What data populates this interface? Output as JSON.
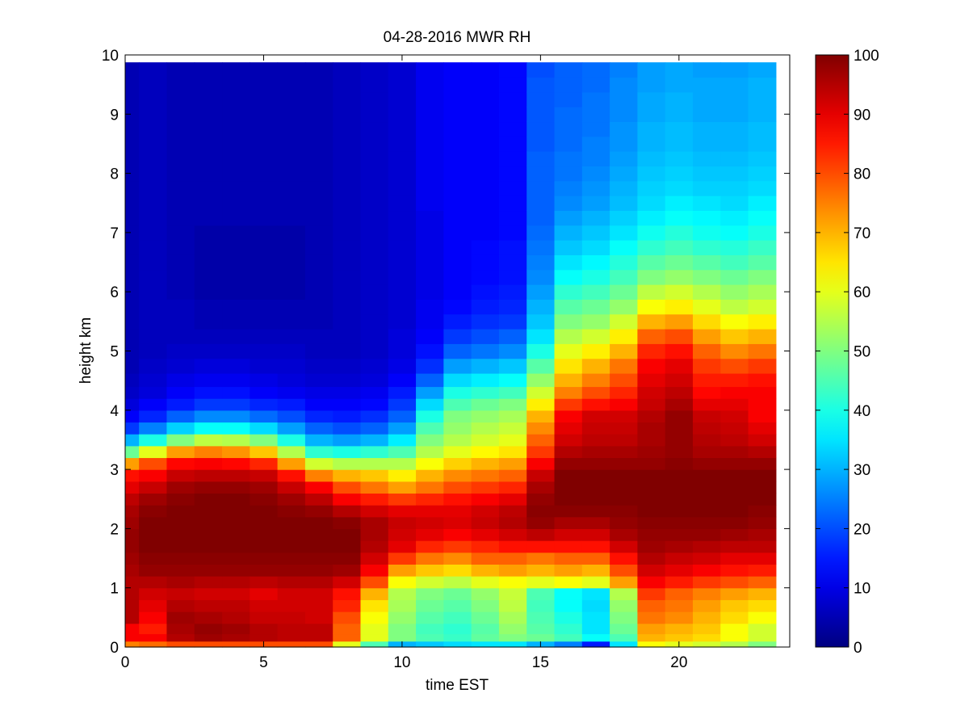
{
  "chart_data": {
    "type": "heatmap",
    "title": "04-28-2016 MWR RH",
    "xlabel": "time EST",
    "ylabel": "height km",
    "xlim": [
      0,
      24
    ],
    "ylim": [
      0,
      10
    ],
    "x_ticks": [
      0,
      5,
      10,
      15,
      20
    ],
    "x_tick_labels": [
      "0",
      "5",
      "10",
      "15",
      "20"
    ],
    "y_ticks": [
      0,
      1,
      2,
      3,
      4,
      5,
      6,
      7,
      8,
      9,
      10
    ],
    "y_tick_labels": [
      "0",
      "1",
      "2",
      "3",
      "4",
      "5",
      "6",
      "7",
      "8",
      "9",
      "10"
    ],
    "colorbar": {
      "colormap": "jet",
      "range": [
        0,
        100
      ],
      "ticks": [
        0,
        10,
        20,
        30,
        40,
        50,
        60,
        70,
        80,
        90,
        100
      ],
      "tick_labels": [
        "0",
        "10",
        "20",
        "30",
        "40",
        "50",
        "60",
        "70",
        "80",
        "90",
        "100"
      ]
    },
    "time_hours": [
      0,
      1,
      2,
      3,
      4,
      5,
      6,
      7,
      8,
      9,
      10,
      11,
      12,
      13,
      14,
      15,
      16,
      17,
      18,
      19,
      20,
      21,
      22,
      23
    ],
    "height_km": [
      0.05,
      0.15,
      0.3,
      0.5,
      0.7,
      0.9,
      1.1,
      1.3,
      1.5,
      1.7,
      1.9,
      2.1,
      2.3,
      2.5,
      2.7,
      2.9,
      3.1,
      3.3,
      3.5,
      3.7,
      3.9,
      4.1,
      4.3,
      4.5,
      4.75,
      5.0,
      5.25,
      5.5,
      5.75,
      6.0,
      6.25,
      6.5,
      6.75,
      7.0,
      7.25,
      7.5,
      7.75,
      8.0,
      8.25,
      8.5,
      8.75,
      9.0,
      9.25,
      9.5,
      9.75
    ],
    "rh": [
      [
        75,
        88,
        88,
        95,
        95,
        95,
        95,
        96,
        97,
        98,
        98,
        97,
        96,
        94,
        90,
        86,
        72,
        48,
        30,
        18,
        12,
        9,
        7,
        6,
        5,
        5,
        5,
        5,
        5,
        5,
        5,
        5,
        5,
        5,
        5,
        5,
        5,
        5,
        5,
        5,
        5,
        5,
        5,
        5,
        5
      ],
      [
        77,
        88,
        85,
        88,
        90,
        92,
        95,
        98,
        99,
        100,
        100,
        100,
        99,
        97,
        93,
        88,
        80,
        60,
        40,
        25,
        16,
        12,
        9,
        8,
        7,
        6,
        6,
        6,
        6,
        6,
        6,
        6,
        6,
        6,
        6,
        6,
        6,
        6,
        6,
        6,
        6,
        6,
        6,
        6,
        6
      ],
      [
        80,
        95,
        96,
        97,
        95,
        93,
        96,
        98,
        99,
        100,
        100,
        100,
        100,
        99,
        97,
        93,
        87,
        72,
        50,
        33,
        22,
        15,
        12,
        10,
        8,
        7,
        6,
        6,
        6,
        5,
        5,
        5,
        5,
        5,
        5,
        5,
        5,
        5,
        5,
        5,
        5,
        5,
        5,
        5,
        5
      ],
      [
        80,
        97,
        98,
        96,
        94,
        92,
        95,
        98,
        99,
        100,
        100,
        100,
        100,
        100,
        98,
        94,
        88,
        75,
        56,
        38,
        26,
        18,
        14,
        11,
        9,
        7,
        6,
        5,
        5,
        4,
        4,
        4,
        4,
        4,
        5,
        5,
        5,
        5,
        5,
        5,
        5,
        5,
        5,
        5,
        5
      ],
      [
        80,
        96,
        97,
        95,
        94,
        92,
        95,
        98,
        99,
        100,
        100,
        100,
        100,
        100,
        98,
        94,
        87,
        73,
        55,
        38,
        26,
        18,
        14,
        11,
        9,
        7,
        6,
        5,
        5,
        4,
        4,
        4,
        4,
        4,
        5,
        5,
        5,
        5,
        5,
        5,
        5,
        5,
        5,
        5,
        5
      ],
      [
        80,
        95,
        95,
        93,
        92,
        90,
        94,
        98,
        99,
        100,
        100,
        100,
        100,
        99,
        97,
        93,
        84,
        68,
        50,
        34,
        23,
        16,
        12,
        10,
        8,
        7,
        6,
        5,
        5,
        4,
        4,
        4,
        4,
        4,
        5,
        5,
        5,
        5,
        5,
        5,
        5,
        5,
        5,
        5,
        5
      ],
      [
        80,
        94,
        94,
        93,
        92,
        92,
        95,
        98,
        99,
        100,
        100,
        100,
        99,
        97,
        93,
        86,
        72,
        55,
        40,
        28,
        20,
        15,
        11,
        9,
        8,
        7,
        6,
        5,
        5,
        4,
        4,
        4,
        4,
        4,
        5,
        5,
        5,
        5,
        5,
        5,
        5,
        5,
        5,
        5,
        5
      ],
      [
        80,
        94,
        94,
        92,
        92,
        92,
        95,
        98,
        99,
        100,
        100,
        100,
        98,
        94,
        88,
        75,
        58,
        42,
        30,
        22,
        16,
        12,
        10,
        8,
        7,
        6,
        6,
        5,
        5,
        5,
        5,
        5,
        5,
        5,
        5,
        5,
        5,
        5,
        5,
        5,
        5,
        5,
        5,
        5,
        5
      ],
      [
        60,
        78,
        78,
        80,
        84,
        86,
        92,
        97,
        99,
        100,
        100,
        99,
        95,
        88,
        80,
        70,
        55,
        40,
        28,
        20,
        15,
        12,
        10,
        8,
        7,
        6,
        6,
        6,
        6,
        6,
        6,
        6,
        6,
        6,
        6,
        6,
        6,
        6,
        6,
        6,
        6,
        6,
        6,
        6,
        6
      ],
      [
        45,
        60,
        60,
        62,
        65,
        70,
        80,
        88,
        92,
        95,
        96,
        96,
        92,
        85,
        76,
        68,
        55,
        42,
        30,
        22,
        17,
        13,
        11,
        9,
        8,
        7,
        7,
        7,
        7,
        7,
        7,
        7,
        7,
        7,
        7,
        7,
        7,
        7,
        7,
        7,
        7,
        7,
        7,
        7,
        7
      ],
      [
        30,
        50,
        50,
        52,
        54,
        55,
        62,
        72,
        82,
        90,
        92,
        93,
        90,
        82,
        72,
        64,
        55,
        45,
        36,
        28,
        22,
        18,
        15,
        12,
        10,
        9,
        9,
        8,
        8,
        8,
        8,
        8,
        8,
        8,
        8,
        8,
        8,
        8,
        8,
        8,
        8,
        8,
        8,
        8,
        8
      ],
      [
        32,
        45,
        44,
        46,
        48,
        50,
        58,
        68,
        76,
        84,
        90,
        92,
        90,
        84,
        76,
        70,
        62,
        55,
        50,
        45,
        40,
        34,
        28,
        22,
        17,
        14,
        12,
        11,
        11,
        10,
        10,
        10,
        10,
        10,
        10,
        11,
        11,
        11,
        11,
        11,
        11,
        11,
        11,
        11,
        11
      ],
      [
        34,
        43,
        42,
        44,
        46,
        48,
        56,
        66,
        74,
        82,
        88,
        91,
        90,
        86,
        80,
        74,
        67,
        60,
        55,
        52,
        50,
        45,
        40,
        34,
        28,
        22,
        18,
        15,
        13,
        12,
        12,
        12,
        12,
        12,
        12,
        12,
        12,
        12,
        12,
        12,
        12,
        12,
        12,
        12,
        12
      ],
      [
        35,
        47,
        46,
        48,
        50,
        52,
        60,
        70,
        78,
        84,
        90,
        93,
        92,
        88,
        82,
        76,
        70,
        63,
        58,
        55,
        52,
        48,
        42,
        36,
        30,
        24,
        20,
        17,
        15,
        14,
        13,
        13,
        13,
        12,
        12,
        12,
        12,
        12,
        12,
        12,
        12,
        12,
        12,
        12,
        12
      ],
      [
        35,
        50,
        52,
        54,
        56,
        57,
        62,
        72,
        78,
        86,
        92,
        95,
        94,
        90,
        84,
        78,
        72,
        65,
        60,
        57,
        54,
        50,
        44,
        38,
        32,
        26,
        22,
        18,
        16,
        15,
        14,
        14,
        14,
        13,
        13,
        13,
        13,
        13,
        13,
        13,
        13,
        13,
        13,
        13,
        13
      ],
      [
        30,
        48,
        46,
        45,
        44,
        45,
        60,
        70,
        76,
        86,
        94,
        98,
        99,
        98,
        96,
        93,
        88,
        82,
        78,
        74,
        70,
        64,
        58,
        52,
        46,
        40,
        35,
        32,
        30,
        28,
        26,
        25,
        24,
        23,
        22,
        22,
        22,
        22,
        22,
        21,
        21,
        21,
        21,
        21,
        20
      ],
      [
        25,
        44,
        42,
        40,
        38,
        38,
        62,
        72,
        78,
        86,
        92,
        96,
        99,
        100,
        100,
        100,
        98,
        95,
        92,
        90,
        88,
        82,
        75,
        70,
        65,
        60,
        55,
        50,
        46,
        42,
        38,
        35,
        32,
        30,
        28,
        26,
        25,
        24,
        24,
        23,
        23,
        23,
        22,
        22,
        22
      ],
      [
        15,
        38,
        35,
        35,
        34,
        35,
        60,
        70,
        78,
        86,
        92,
        96,
        99,
        100,
        100,
        100,
        98,
        96,
        94,
        93,
        92,
        86,
        80,
        75,
        70,
        64,
        58,
        52,
        48,
        44,
        40,
        37,
        34,
        32,
        30,
        28,
        27,
        26,
        25,
        25,
        24,
        24,
        24,
        23,
        23
      ],
      [
        35,
        45,
        48,
        50,
        52,
        55,
        72,
        80,
        86,
        92,
        96,
        98,
        99,
        100,
        100,
        100,
        98,
        96,
        94,
        93,
        92,
        88,
        84,
        80,
        76,
        70,
        64,
        58,
        52,
        48,
        44,
        41,
        38,
        35,
        33,
        31,
        30,
        29,
        28,
        27,
        27,
        26,
        26,
        26,
        25
      ],
      [
        62,
        70,
        72,
        76,
        78,
        82,
        88,
        92,
        95,
        97,
        98,
        99,
        100,
        100,
        100,
        100,
        98,
        97,
        96,
        96,
        95,
        93,
        92,
        90,
        88,
        84,
        78,
        70,
        62,
        56,
        50,
        46,
        42,
        39,
        36,
        34,
        33,
        32,
        31,
        30,
        30,
        29,
        29,
        28,
        28
      ],
      [
        60,
        68,
        70,
        74,
        76,
        78,
        85,
        90,
        93,
        96,
        98,
        99,
        100,
        100,
        100,
        100,
        99,
        98,
        98,
        98,
        98,
        96,
        94,
        92,
        90,
        86,
        80,
        72,
        64,
        58,
        52,
        48,
        44,
        41,
        38,
        36,
        34,
        33,
        32,
        31,
        31,
        30,
        30,
        29,
        29
      ],
      [
        58,
        66,
        68,
        70,
        72,
        75,
        82,
        88,
        92,
        95,
        98,
        99,
        100,
        100,
        100,
        100,
        98,
        96,
        95,
        94,
        93,
        90,
        87,
        85,
        82,
        78,
        72,
        66,
        60,
        55,
        50,
        46,
        42,
        39,
        37,
        35,
        33,
        32,
        31,
        30,
        30,
        29,
        29,
        29,
        28
      ],
      [
        55,
        62,
        62,
        66,
        68,
        72,
        80,
        86,
        90,
        94,
        97,
        99,
        100,
        100,
        100,
        100,
        98,
        96,
        94,
        93,
        92,
        90,
        88,
        85,
        80,
        74,
        68,
        62,
        56,
        52,
        48,
        44,
        41,
        38,
        36,
        34,
        33,
        32,
        31,
        30,
        30,
        29,
        29,
        29,
        28
      ],
      [
        50,
        58,
        58,
        62,
        66,
        70,
        78,
        85,
        90,
        94,
        96,
        98,
        99,
        100,
        100,
        100,
        98,
        95,
        92,
        90,
        88,
        88,
        88,
        86,
        82,
        76,
        70,
        64,
        58,
        54,
        50,
        46,
        43,
        40,
        38,
        36,
        34,
        33,
        32,
        31,
        31,
        30,
        30,
        30,
        29
      ]
    ]
  }
}
